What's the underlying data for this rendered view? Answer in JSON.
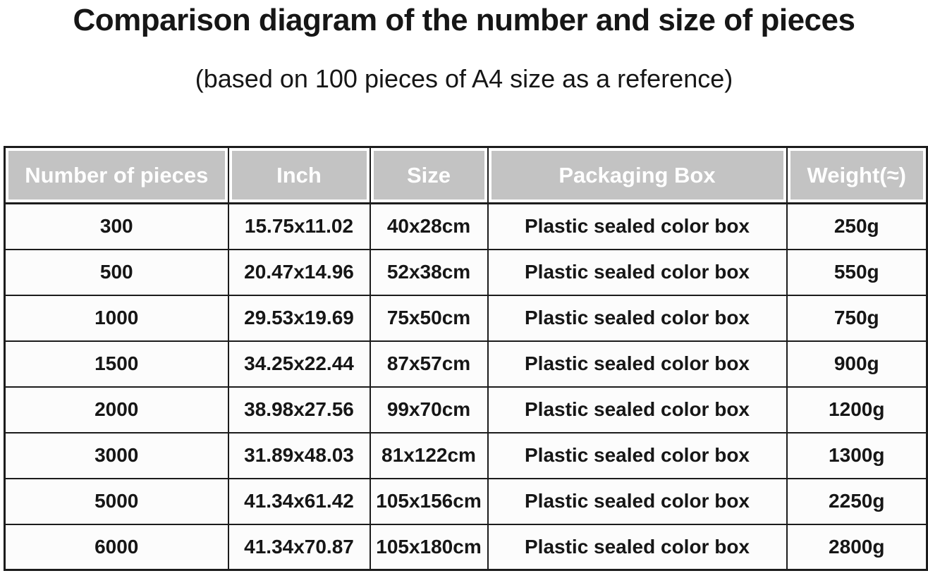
{
  "title": "Comparison diagram of the number and size of pieces",
  "subtitle": "(based on 100 pieces of A4 size as a reference)",
  "colors": {
    "header_bg": "#c3c3c3",
    "header_text": "#ffffff",
    "border": "#1c1c1c",
    "body_text": "#161616",
    "background": "#ffffff"
  },
  "chart_data": {
    "type": "table",
    "title": "Comparison diagram of the number and size of pieces",
    "subtitle": "(based on 100 pieces of A4 size as a reference)",
    "columns": [
      "Number of pieces",
      "Inch",
      "Size",
      "Packaging Box",
      "Weight(≈)"
    ],
    "rows": [
      [
        "300",
        "15.75x11.02",
        "40x28cm",
        "Plastic sealed color box",
        "250g"
      ],
      [
        "500",
        "20.47x14.96",
        "52x38cm",
        "Plastic sealed color box",
        "550g"
      ],
      [
        "1000",
        "29.53x19.69",
        "75x50cm",
        "Plastic sealed color box",
        "750g"
      ],
      [
        "1500",
        "34.25x22.44",
        "87x57cm",
        "Plastic sealed color box",
        "900g"
      ],
      [
        "2000",
        "38.98x27.56",
        "99x70cm",
        "Plastic sealed color box",
        "1200g"
      ],
      [
        "3000",
        "31.89x48.03",
        "81x122cm",
        "Plastic sealed color box",
        "1300g"
      ],
      [
        "5000",
        "41.34x61.42",
        "105x156cm",
        "Plastic sealed color box",
        "2250g"
      ],
      [
        "6000",
        "41.34x70.87",
        "105x180cm",
        "Plastic sealed color box",
        "2800g"
      ]
    ]
  }
}
